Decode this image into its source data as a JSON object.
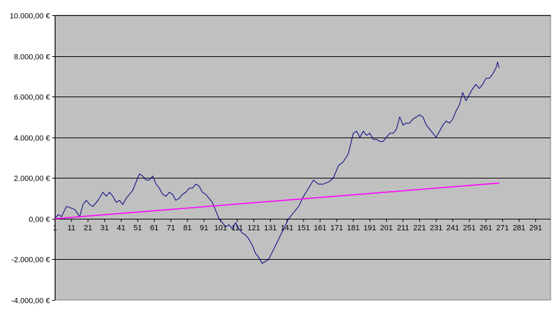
{
  "chart_data": {
    "type": "line",
    "title": "",
    "xlabel": "",
    "ylabel": "",
    "ylim": [
      -4000,
      10000
    ],
    "xlim": [
      1,
      300
    ],
    "grid": "horizontal",
    "legend": "none",
    "y_ticks": [
      -4000,
      -2000,
      0,
      2000,
      4000,
      6000,
      8000,
      10000
    ],
    "y_tick_labels": [
      "-4.000,00 €",
      "-2.000,00 €",
      "0,00 €",
      "2.000,00 €",
      "4.000,00 €",
      "6.000,00 €",
      "8.000,00 €",
      "10.000,00 €"
    ],
    "x_ticks": [
      1,
      11,
      21,
      31,
      41,
      51,
      61,
      71,
      81,
      91,
      101,
      111,
      121,
      131,
      141,
      151,
      161,
      171,
      181,
      191,
      201,
      211,
      221,
      231,
      241,
      251,
      261,
      271,
      281,
      291
    ],
    "colors": {
      "plot_background": "#c0c0c0",
      "gridline": "#000000",
      "series_1": "#000080",
      "series_2": "#ff00ff"
    },
    "series": [
      {
        "color": "#000080",
        "x": [
          1,
          3,
          5,
          8,
          10,
          13,
          16,
          18,
          20,
          22,
          24,
          27,
          30,
          32,
          34,
          36,
          38,
          40,
          42,
          44,
          46,
          48,
          50,
          52,
          54,
          56,
          58,
          60,
          62,
          64,
          66,
          68,
          70,
          72,
          74,
          76,
          78,
          80,
          82,
          84,
          86,
          88,
          90,
          92,
          94,
          96,
          98,
          100,
          102,
          104,
          106,
          108,
          110,
          112,
          114,
          116,
          118,
          120,
          122,
          124,
          126,
          128,
          130,
          133,
          136,
          139,
          142,
          145,
          148,
          151,
          154,
          157,
          160,
          163,
          166,
          169,
          172,
          175,
          178,
          181,
          183,
          185,
          187,
          189,
          191,
          193,
          195,
          197,
          199,
          201,
          203,
          205,
          207,
          209,
          211,
          213,
          215,
          217,
          219,
          221,
          223,
          225,
          227,
          229,
          231,
          233,
          235,
          237,
          239,
          241,
          243,
          245,
          247,
          249,
          251,
          253,
          255,
          257,
          259,
          261,
          263,
          265,
          267,
          268,
          269
        ],
        "values": [
          0,
          200,
          100,
          600,
          550,
          450,
          100,
          700,
          900,
          700,
          600,
          900,
          1300,
          1100,
          1300,
          1100,
          800,
          900,
          700,
          1000,
          1200,
          1400,
          1800,
          2200,
          2100,
          1900,
          1900,
          2100,
          1700,
          1500,
          1200,
          1100,
          1300,
          1200,
          900,
          1000,
          1200,
          1300,
          1500,
          1500,
          1700,
          1600,
          1300,
          1200,
          1000,
          800,
          400,
          0,
          -200,
          -400,
          -300,
          -500,
          -200,
          -500,
          -700,
          -800,
          -1000,
          -1300,
          -1700,
          -1900,
          -2200,
          -2100,
          -2000,
          -1500,
          -1000,
          -500,
          0,
          300,
          600,
          1100,
          1500,
          1900,
          1700,
          1700,
          1800,
          2000,
          2600,
          2800,
          3200,
          4200,
          4300,
          4000,
          4300,
          4100,
          4200,
          3900,
          3900,
          3800,
          3800,
          4000,
          4200,
          4200,
          4400,
          5000,
          4600,
          4700,
          4700,
          4900,
          5000,
          5100,
          5000,
          4600,
          4400,
          4200,
          4000,
          4300,
          4600,
          4800,
          4700,
          4900,
          5300,
          5600,
          6200,
          5800,
          6100,
          6400,
          6600,
          6400,
          6600,
          6900,
          6900,
          7100,
          7400,
          7700,
          7400
        ]
      },
      {
        "color": "#ff00ff",
        "x": [
          1,
          269
        ],
        "values": [
          0,
          1750
        ]
      }
    ]
  }
}
